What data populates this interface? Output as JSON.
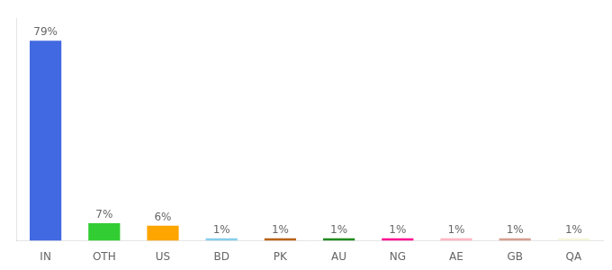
{
  "chart_data": {
    "type": "bar",
    "categories": [
      "IN",
      "OTH",
      "US",
      "BD",
      "PK",
      "AU",
      "NG",
      "AE",
      "GB",
      "QA"
    ],
    "values": [
      79,
      7,
      6,
      1,
      1,
      1,
      1,
      1,
      1,
      1
    ],
    "value_labels": [
      "79%",
      "7%",
      "6%",
      "1%",
      "1%",
      "1%",
      "1%",
      "1%",
      "1%",
      "1%"
    ],
    "data_labels": true,
    "colors": [
      "#4169e1",
      "#32cd32",
      "#ffa500",
      "#87ceeb",
      "#b8631a",
      "#228b22",
      "#ff1493",
      "#ffb6c1",
      "#d4a090",
      "#f5f5dc"
    ],
    "ylim": [
      0,
      88
    ],
    "grid": false,
    "tick_labels": "x"
  }
}
